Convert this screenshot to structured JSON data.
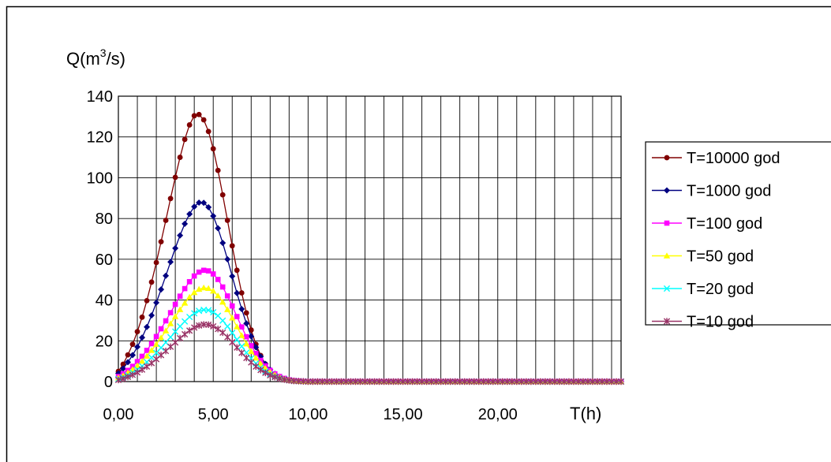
{
  "chart_data": {
    "type": "line",
    "ylabel": "Q(m",
    "ylabel_sup": "3",
    "ylabel_tail": "/s)",
    "xlabel": "T(h)",
    "xlim": [
      0,
      26.5
    ],
    "ylim": [
      0,
      140
    ],
    "y_ticks": [
      0,
      20,
      40,
      60,
      80,
      100,
      120,
      140
    ],
    "y_tick_labels": [
      "0",
      "20",
      "40",
      "60",
      "80",
      "100",
      "120",
      "140"
    ],
    "x_ticks": [
      0,
      5,
      10,
      15,
      20
    ],
    "x_tick_labels": [
      "0,00",
      "5,00",
      "10,00",
      "15,00",
      "20,00"
    ],
    "grid": true,
    "legend_position": "right",
    "x": [
      0.0,
      0.25,
      0.5,
      0.75,
      1.0,
      1.25,
      1.5,
      1.75,
      2.0,
      2.25,
      2.5,
      2.75,
      3.0,
      3.25,
      3.5,
      3.75,
      4.0,
      4.25,
      4.5,
      4.75,
      5.0,
      5.25,
      5.5,
      5.75,
      6.0,
      6.25,
      6.5,
      6.75,
      7.0,
      7.25,
      7.5,
      7.75,
      8.0,
      8.25,
      8.5,
      8.75,
      9.0,
      9.25,
      9.5,
      9.75,
      10.0,
      10.25,
      10.5,
      10.75,
      11.0,
      11.25,
      11.5,
      11.75,
      12.0,
      12.25,
      12.5,
      12.75,
      13.0,
      13.25,
      13.5,
      13.75,
      14.0,
      14.25,
      14.5,
      14.75,
      15.0,
      15.25,
      15.5,
      15.75,
      16.0,
      16.25,
      16.5,
      16.75,
      17.0,
      17.25,
      17.5,
      17.75,
      18.0,
      18.25,
      18.5,
      18.75,
      19.0,
      19.25,
      19.5,
      19.75,
      20.0,
      20.25,
      20.5,
      20.75,
      21.0,
      21.25,
      21.5,
      21.75,
      22.0,
      22.25,
      22.5,
      22.75,
      23.0,
      23.25,
      23.5,
      23.75,
      24.0,
      24.25,
      24.5,
      24.75,
      25.0,
      25.25,
      25.5,
      25.75,
      26.0,
      26.25,
      26.5
    ],
    "series": [
      {
        "name": "T=10000 god",
        "color": "#800000",
        "marker": "circle",
        "values": [
          5.0,
          8.5,
          13.1,
          18.3,
          24.5,
          31.6,
          39.7,
          48.8,
          58.4,
          68.6,
          79.1,
          89.8,
          100.2,
          110.0,
          118.8,
          125.9,
          130.4,
          131.0,
          128.4,
          122.7,
          114.2,
          103.6,
          91.6,
          79.1,
          66.6,
          54.6,
          43.5,
          33.7,
          25.3,
          18.3,
          12.8,
          8.6,
          5.6,
          3.4,
          2.0,
          1.1,
          0.6,
          0.3,
          0.1,
          0.1,
          0.0,
          0.0,
          0.0,
          0.0,
          0.0,
          0.0,
          0.0,
          0.0,
          0.0,
          0.0,
          0.0,
          0.0,
          0.0,
          0.0,
          0.0,
          0.0,
          0.0,
          0.0,
          0.0,
          0.0,
          0.0,
          0.0,
          0.0,
          0.0,
          0.0,
          0.0,
          0.0,
          0.0,
          0.0,
          0.0,
          0.0,
          0.0,
          0.0,
          0.0,
          0.0,
          0.0,
          0.0,
          0.0,
          0.0,
          0.0,
          0.0,
          0.0,
          0.0,
          0.0,
          0.0,
          0.0,
          0.0,
          0.0,
          0.0,
          0.0,
          0.0,
          0.0,
          0.0,
          0.0,
          0.0,
          0.0,
          0.0,
          0.0,
          0.0,
          0.0,
          0.0,
          0.0,
          0.0,
          0.0,
          0.0,
          0.0,
          0.0
        ]
      },
      {
        "name": "T=1000 god",
        "color": "#000080",
        "marker": "diamond",
        "values": [
          4.0,
          6.4,
          9.5,
          13.0,
          17.0,
          21.6,
          26.8,
          32.5,
          38.7,
          45.2,
          51.9,
          58.7,
          65.4,
          71.7,
          77.4,
          82.2,
          85.8,
          87.8,
          87.7,
          85.5,
          81.2,
          75.2,
          68.0,
          60.0,
          51.7,
          43.4,
          35.6,
          28.5,
          22.2,
          16.8,
          12.3,
          8.7,
          5.9,
          3.8,
          2.4,
          1.4,
          0.8,
          0.4,
          0.2,
          0.1,
          0.0,
          0.0,
          0.0,
          0.0,
          0.0,
          0.0,
          0.0,
          0.0,
          0.0,
          0.0,
          0.0,
          0.0,
          0.0,
          0.0,
          0.0,
          0.0,
          0.0,
          0.0,
          0.0,
          0.0,
          0.0,
          0.0,
          0.0,
          0.0,
          0.0,
          0.0,
          0.0,
          0.0,
          0.0,
          0.0,
          0.0,
          0.0,
          0.0,
          0.0,
          0.0,
          0.0,
          0.0,
          0.0,
          0.0,
          0.0,
          0.0,
          0.0,
          0.0,
          0.0,
          0.0,
          0.0,
          0.0,
          0.0,
          0.0,
          0.0,
          0.0,
          0.0,
          0.0,
          0.0,
          0.0,
          0.0,
          0.0,
          0.0,
          0.0,
          0.0,
          0.0,
          0.0,
          0.0,
          0.0,
          0.0,
          0.0,
          0.0
        ]
      },
      {
        "name": "T=100 god",
        "color": "#ff00ff",
        "marker": "square",
        "values": [
          2.5,
          3.8,
          5.5,
          7.5,
          9.8,
          12.4,
          15.3,
          18.6,
          22.1,
          25.9,
          29.8,
          33.8,
          37.9,
          41.9,
          45.6,
          49.0,
          51.8,
          53.7,
          54.6,
          54.3,
          52.8,
          50.1,
          46.4,
          42.0,
          37.1,
          31.9,
          26.8,
          22.0,
          17.6,
          13.8,
          10.4,
          7.7,
          5.5,
          3.8,
          2.5,
          1.6,
          0.9,
          0.5,
          0.3,
          0.1,
          0.0,
          0.0,
          0.0,
          0.0,
          0.0,
          0.0,
          0.0,
          0.0,
          0.0,
          0.0,
          0.0,
          0.0,
          0.0,
          0.0,
          0.0,
          0.0,
          0.0,
          0.0,
          0.0,
          0.0,
          0.0,
          0.0,
          0.0,
          0.0,
          0.0,
          0.0,
          0.0,
          0.0,
          0.0,
          0.0,
          0.0,
          0.0,
          0.0,
          0.0,
          0.0,
          0.0,
          0.0,
          0.0,
          0.0,
          0.0,
          0.0,
          0.0,
          0.0,
          0.0,
          0.0,
          0.0,
          0.0,
          0.0,
          0.0,
          0.0,
          0.0,
          0.0,
          0.0,
          0.0,
          0.0,
          0.0,
          0.0,
          0.0,
          0.0,
          0.0,
          0.0,
          0.0,
          0.0,
          0.0,
          0.0,
          0.0,
          0.0
        ]
      },
      {
        "name": "T=50 god",
        "color": "#ffff00",
        "marker": "triangle",
        "values": [
          1.8,
          2.9,
          4.3,
          5.9,
          7.8,
          10.0,
          12.5,
          15.3,
          18.3,
          21.5,
          24.9,
          28.4,
          31.9,
          35.3,
          38.5,
          41.4,
          43.7,
          45.3,
          46.0,
          45.7,
          44.4,
          42.1,
          39.0,
          35.3,
          31.2,
          26.9,
          22.6,
          18.5,
          14.8,
          11.6,
          8.8,
          6.5,
          4.6,
          3.2,
          2.1,
          1.3,
          0.8,
          0.4,
          0.2,
          0.1,
          0.0,
          0.0,
          0.0,
          0.0,
          0.0,
          0.0,
          0.0,
          0.0,
          0.0,
          0.0,
          0.0,
          0.0,
          0.0,
          0.0,
          0.0,
          0.0,
          0.0,
          0.0,
          0.0,
          0.0,
          0.0,
          0.0,
          0.0,
          0.0,
          0.0,
          0.0,
          0.0,
          0.0,
          0.0,
          0.0,
          0.0,
          0.0,
          0.0,
          0.0,
          0.0,
          0.0,
          0.0,
          0.0,
          0.0,
          0.0,
          0.0,
          0.0,
          0.0,
          0.0,
          0.0,
          0.0,
          0.0,
          0.0,
          0.0,
          0.0,
          0.0,
          0.0,
          0.0,
          0.0,
          0.0,
          0.0,
          0.0,
          0.0,
          0.0,
          0.0,
          0.0,
          0.0,
          0.0,
          0.0,
          0.0,
          0.0,
          0.0
        ]
      },
      {
        "name": "T=20 god",
        "color": "#00ffff",
        "marker": "x",
        "values": [
          1.2,
          2.0,
          3.1,
          4.4,
          5.9,
          7.6,
          9.6,
          11.8,
          14.1,
          16.6,
          19.2,
          21.8,
          24.5,
          27.1,
          29.5,
          31.7,
          33.5,
          34.7,
          35.2,
          35.0,
          34.0,
          32.3,
          29.9,
          27.1,
          23.9,
          20.6,
          17.3,
          14.2,
          11.4,
          8.9,
          6.8,
          5.0,
          3.6,
          2.5,
          1.7,
          1.1,
          0.6,
          0.3,
          0.2,
          0.1,
          0.0,
          0.0,
          0.0,
          0.0,
          0.0,
          0.0,
          0.0,
          0.0,
          0.0,
          0.0,
          0.0,
          0.0,
          0.0,
          0.0,
          0.0,
          0.0,
          0.0,
          0.0,
          0.0,
          0.0,
          0.0,
          0.0,
          0.0,
          0.0,
          0.0,
          0.0,
          0.0,
          0.0,
          0.0,
          0.0,
          0.0,
          0.0,
          0.0,
          0.0,
          0.0,
          0.0,
          0.0,
          0.0,
          0.0,
          0.0,
          0.0,
          0.0,
          0.0,
          0.0,
          0.0,
          0.0,
          0.0,
          0.0,
          0.0,
          0.0,
          0.0,
          0.0,
          0.0,
          0.0,
          0.0,
          0.0,
          0.0,
          0.0,
          0.0,
          0.0,
          0.0,
          0.0,
          0.0,
          0.0,
          0.0,
          0.0,
          0.0
        ]
      },
      {
        "name": "T=10 god",
        "color": "#993366",
        "marker": "star",
        "values": [
          0.8,
          1.4,
          2.3,
          3.3,
          4.5,
          5.9,
          7.4,
          9.1,
          11.0,
          13.0,
          15.0,
          17.1,
          19.2,
          21.3,
          23.2,
          25.0,
          26.5,
          27.5,
          28.0,
          27.9,
          27.1,
          25.8,
          24.0,
          21.8,
          19.3,
          16.7,
          14.1,
          11.6,
          9.4,
          7.4,
          5.7,
          4.3,
          3.1,
          2.2,
          1.5,
          1.0,
          0.6,
          0.3,
          0.2,
          0.1,
          0.0,
          0.0,
          0.0,
          0.0,
          0.0,
          0.0,
          0.0,
          0.0,
          0.0,
          0.0,
          0.0,
          0.0,
          0.0,
          0.0,
          0.0,
          0.0,
          0.0,
          0.0,
          0.0,
          0.0,
          0.0,
          0.0,
          0.0,
          0.0,
          0.0,
          0.0,
          0.0,
          0.0,
          0.0,
          0.0,
          0.0,
          0.0,
          0.0,
          0.0,
          0.0,
          0.0,
          0.0,
          0.0,
          0.0,
          0.0,
          0.0,
          0.0,
          0.0,
          0.0,
          0.0,
          0.0,
          0.0,
          0.0,
          0.0,
          0.0,
          0.0,
          0.0,
          0.0,
          0.0,
          0.0,
          0.0,
          0.0,
          0.0,
          0.0,
          0.0,
          0.0,
          0.0,
          0.0,
          0.0,
          0.0,
          0.0,
          0.0
        ]
      }
    ]
  }
}
